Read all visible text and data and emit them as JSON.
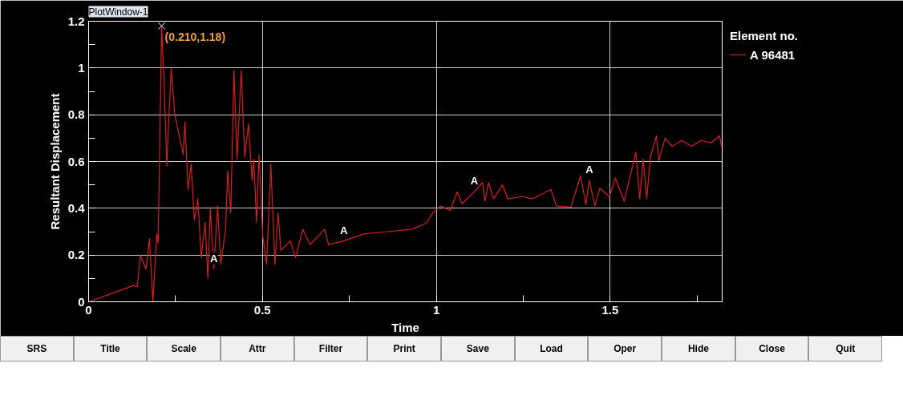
{
  "chart_data": {
    "type": "line",
    "title": "PlotWindow-1",
    "xlabel": "Time",
    "ylabel": "Resultant Displacement",
    "legend_title": "Element no.",
    "legend": "top right",
    "grid": true,
    "xlim": [
      0,
      1.822
    ],
    "ylim": [
      0,
      1.2
    ],
    "xticks": [
      0,
      {
        "value": 0.25,
        "label": null
      },
      0.5,
      {
        "value": 0.75,
        "label": null
      },
      1,
      {
        "value": 1.25,
        "label": null
      },
      1.5,
      {
        "value": 1.75,
        "label": null
      }
    ],
    "yticks": [
      0,
      {
        "value": 0.1,
        "label": null
      },
      0.2,
      {
        "value": 0.3,
        "label": null
      },
      0.4,
      {
        "value": 0.5,
        "label": null
      },
      0.6,
      {
        "value": 0.7,
        "label": null
      },
      0.8,
      {
        "value": 0.9,
        "label": null
      },
      1,
      {
        "value": 1.1,
        "label": null
      },
      1.2
    ],
    "series": [
      {
        "name": "A 96481",
        "color": "#d42020",
        "x": [
          0,
          0.13,
          0.14,
          0.149,
          0.165,
          0.175,
          0.185,
          0.196,
          0.2,
          0.21,
          0.217,
          0.225,
          0.231,
          0.2375,
          0.248,
          0.272,
          0.277,
          0.286,
          0.295,
          0.304,
          0.314,
          0.324,
          0.335,
          0.343,
          0.35,
          0.36,
          0.371,
          0.38,
          0.394,
          0.4,
          0.409,
          0.418,
          0.427,
          0.439,
          0.449,
          0.46,
          0.47,
          0.475,
          0.483,
          0.49,
          0.501,
          0.512,
          0.524,
          0.536,
          0.545,
          0.553,
          0.58,
          0.595,
          0.616,
          0.637,
          0.679,
          0.69,
          0.734,
          0.79,
          0.858,
          0.928,
          0.97,
          0.99,
          1.012,
          1.04,
          1.06,
          1.074,
          1.109,
          1.133,
          1.14,
          1.15,
          1.165,
          1.19,
          1.206,
          1.248,
          1.275,
          1.33,
          1.345,
          1.387,
          1.415,
          1.43,
          1.44,
          1.456,
          1.47,
          1.498,
          1.515,
          1.54,
          1.574,
          1.585,
          1.595,
          1.605,
          1.616,
          1.633,
          1.64,
          1.658,
          1.678,
          1.706,
          1.734,
          1.762,
          1.79,
          1.814,
          1.821
        ],
        "values": [
          0,
          0.07,
          0.065,
          0.2,
          0.14,
          0.27,
          0,
          0.29,
          0.25,
          1.18,
          0.94,
          0.58,
          0.79,
          1.0,
          0.8,
          0.63,
          0.77,
          0.48,
          0.59,
          0.35,
          0.44,
          0.19,
          0.34,
          0.1,
          0.4,
          0.14,
          0.41,
          0.16,
          0.31,
          0.56,
          0.38,
          0.99,
          0.61,
          0.99,
          0.62,
          0.76,
          0.52,
          0.61,
          0.34,
          0.63,
          0.28,
          0.16,
          0.59,
          0.16,
          0.38,
          0.22,
          0.26,
          0.19,
          0.31,
          0.245,
          0.31,
          0.245,
          0.26,
          0.29,
          0.3,
          0.31,
          0.335,
          0.38,
          0.41,
          0.39,
          0.47,
          0.42,
          0.47,
          0.51,
          0.43,
          0.51,
          0.44,
          0.5,
          0.44,
          0.45,
          0.44,
          0.48,
          0.41,
          0.405,
          0.54,
          0.415,
          0.52,
          0.41,
          0.485,
          0.45,
          0.53,
          0.43,
          0.64,
          0.44,
          0.61,
          0.44,
          0.62,
          0.71,
          0.605,
          0.7,
          0.665,
          0.69,
          0.665,
          0.69,
          0.68,
          0.71,
          0.665
        ]
      }
    ],
    "annotations": [
      {
        "text": "(0.210,1.18)",
        "x": 0.21,
        "y": 1.18
      },
      {
        "text": "A",
        "x": 0.36,
        "y": 0.14
      },
      {
        "text": "A",
        "x": 0.734,
        "y": 0.26
      },
      {
        "text": "A",
        "x": 1.109,
        "y": 0.47
      },
      {
        "text": "A",
        "x": 1.44,
        "y": 0.52
      },
      "SRS",
      "Title",
      "Scale",
      "Attr",
      "Filter",
      "Print",
      "Save",
      "Load",
      "Oper",
      "Hide",
      "Close",
      "Quit"
    ]
  }
}
